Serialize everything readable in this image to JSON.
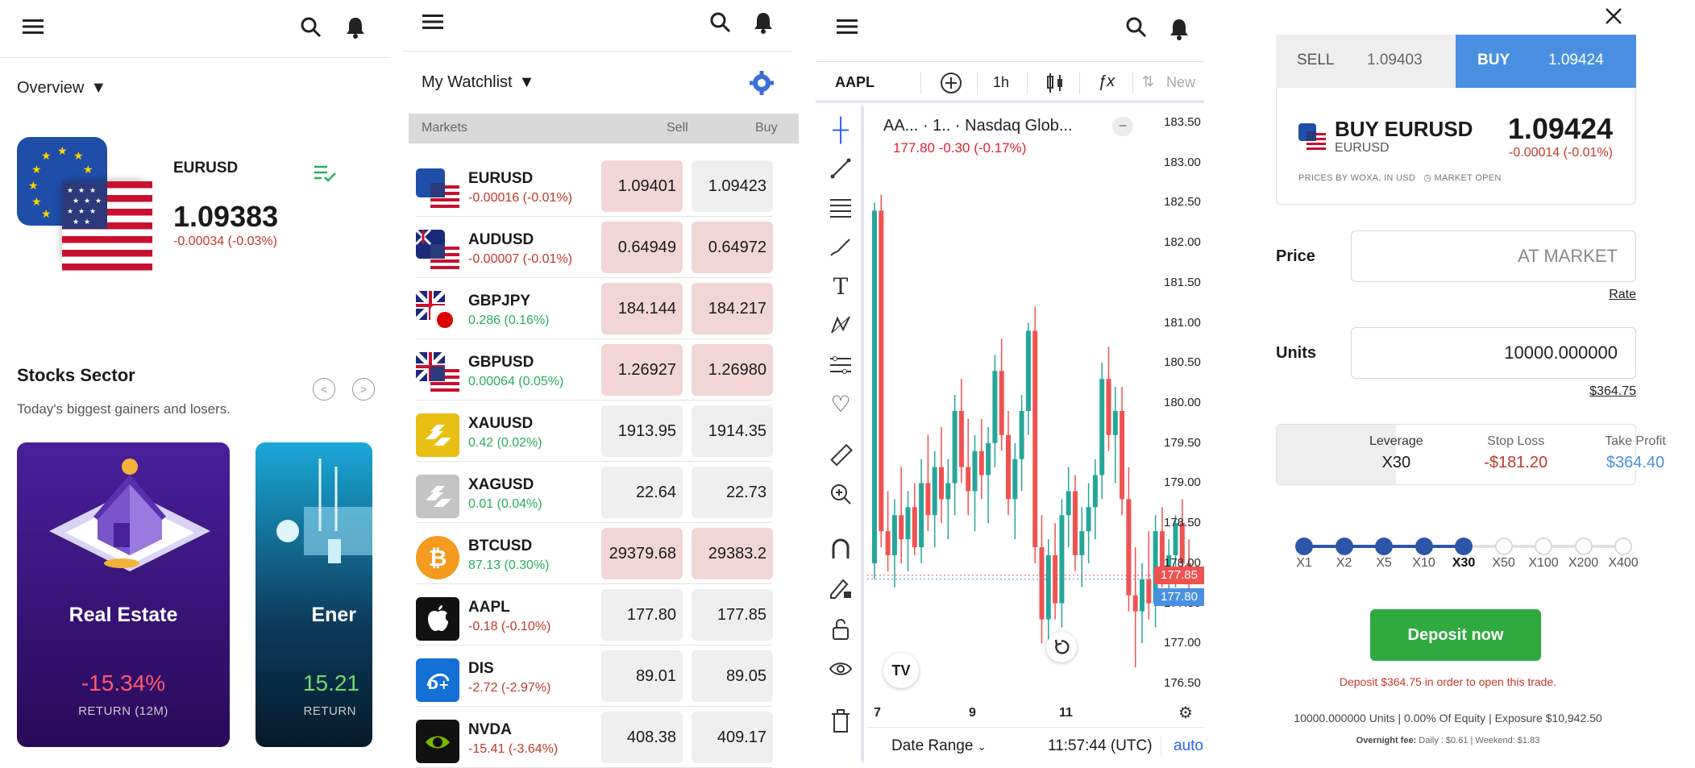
{
  "overview": {
    "title": "Overview",
    "pair": "EURUSD",
    "price": "1.09383",
    "change": "-0.00034 (-0.03%)",
    "sector_title": "Stocks Sector",
    "sector_sub": "Today's biggest gainers and losers.",
    "cards": [
      {
        "title": "Real Estate",
        "return": "-15.34%",
        "return_label": "RETURN (12M)"
      },
      {
        "title": "Ener",
        "return": "15.21",
        "return_label": "RETURN"
      }
    ]
  },
  "watchlist": {
    "title": "My Watchlist",
    "col_markets": "Markets",
    "col_sell": "Sell",
    "col_buy": "Buy",
    "rows": [
      {
        "name": "EURUSD",
        "change": "-0.00016 (-0.01%)",
        "dir": "neg",
        "sell": "1.09401",
        "buy": "1.09423",
        "sell_red": true,
        "buy_red": false,
        "icon": "eu-us-flag-icon"
      },
      {
        "name": "AUDUSD",
        "change": "-0.00007 (-0.01%)",
        "dir": "neg",
        "sell": "0.64949",
        "buy": "0.64972",
        "sell_red": true,
        "buy_red": true,
        "icon": "au-us-flag-icon"
      },
      {
        "name": "GBPJPY",
        "change": "0.286 (0.16%)",
        "dir": "pos",
        "sell": "184.144",
        "buy": "184.217",
        "sell_red": true,
        "buy_red": true,
        "icon": "gb-jp-flag-icon"
      },
      {
        "name": "GBPUSD",
        "change": "0.00064 (0.05%)",
        "dir": "pos",
        "sell": "1.26927",
        "buy": "1.26980",
        "sell_red": true,
        "buy_red": true,
        "icon": "gb-us-flag-icon"
      },
      {
        "name": "XAUUSD",
        "change": "0.42 (0.02%)",
        "dir": "pos",
        "sell": "1913.95",
        "buy": "1914.35",
        "sell_red": false,
        "buy_red": false,
        "icon": "gold-bars-icon"
      },
      {
        "name": "XAGUSD",
        "change": "0.01 (0.04%)",
        "dir": "pos",
        "sell": "22.64",
        "buy": "22.73",
        "sell_red": false,
        "buy_red": false,
        "icon": "silver-bars-icon"
      },
      {
        "name": "BTCUSD",
        "change": "87.13 (0.30%)",
        "dir": "pos",
        "sell": "29379.68",
        "buy": "29383.2",
        "sell_red": true,
        "buy_red": true,
        "icon": "bitcoin-icon"
      },
      {
        "name": "AAPL",
        "change": "-0.18 (-0.10%)",
        "dir": "neg",
        "sell": "177.80",
        "buy": "177.85",
        "sell_red": false,
        "buy_red": false,
        "icon": "apple-icon"
      },
      {
        "name": "DIS",
        "change": "-2.72 (-2.97%)",
        "dir": "neg",
        "sell": "89.01",
        "buy": "89.05",
        "sell_red": false,
        "buy_red": false,
        "icon": "disney-icon"
      },
      {
        "name": "NVDA",
        "change": "-15.41 (-3.64%)",
        "dir": "neg",
        "sell": "408.38",
        "buy": "409.17",
        "sell_red": false,
        "buy_red": false,
        "icon": "nvidia-icon"
      }
    ]
  },
  "chart_screen": {
    "symbol": "AAPL",
    "timeframe": "1h",
    "new_label": "New",
    "legend_title": "AA...  · 1.. · Nasdaq Glob...",
    "legend_values": "177.80  -0.30 (-0.17%)",
    "date_range": "Date Range",
    "clock": "11:57:44 (UTC)",
    "auto": "auto",
    "logo": "TV",
    "sell_tag": "177.85",
    "buy_tag": "177.80"
  },
  "chart_data": {
    "type": "candlestick",
    "title": "",
    "xlabel": "",
    "ylabel": "",
    "ylim": [
      176.3,
      183.7
    ],
    "x_ticks": [
      "7",
      "9",
      "11"
    ],
    "y_ticks": [
      "183.50",
      "183.00",
      "182.50",
      "182.00",
      "181.50",
      "181.00",
      "180.50",
      "180.00",
      "179.50",
      "179.00",
      "178.50",
      "178.00",
      "177.50",
      "177.00",
      "176.50"
    ],
    "last_sell": 177.85,
    "last_buy": 177.8,
    "candles": [
      [
        178.0,
        182.5,
        177.8,
        182.4
      ],
      [
        182.4,
        182.6,
        178.2,
        178.4
      ],
      [
        178.4,
        178.9,
        177.9,
        178.1
      ],
      [
        178.1,
        178.8,
        177.7,
        178.6
      ],
      [
        178.6,
        179.2,
        178.0,
        178.3
      ],
      [
        178.3,
        178.9,
        177.9,
        178.7
      ],
      [
        178.7,
        179.0,
        178.1,
        178.2
      ],
      [
        178.2,
        179.3,
        178.0,
        179.0
      ],
      [
        179.0,
        179.6,
        178.4,
        178.6
      ],
      [
        178.6,
        179.4,
        178.2,
        179.2
      ],
      [
        179.2,
        179.7,
        178.5,
        178.8
      ],
      [
        178.8,
        179.3,
        178.3,
        179.0
      ],
      [
        179.0,
        180.1,
        178.6,
        179.9
      ],
      [
        179.9,
        180.3,
        179.0,
        179.2
      ],
      [
        179.2,
        179.8,
        178.6,
        178.9
      ],
      [
        178.9,
        179.6,
        178.4,
        179.4
      ],
      [
        179.4,
        179.8,
        178.8,
        179.1
      ],
      [
        179.1,
        179.7,
        178.5,
        179.5
      ],
      [
        179.5,
        180.6,
        179.2,
        180.4
      ],
      [
        180.4,
        180.8,
        179.4,
        179.6
      ],
      [
        179.6,
        179.9,
        178.6,
        178.8
      ],
      [
        178.8,
        179.5,
        178.3,
        179.3
      ],
      [
        179.3,
        180.1,
        178.9,
        179.9
      ],
      [
        179.9,
        181.0,
        179.6,
        180.9
      ],
      [
        180.9,
        181.2,
        178.0,
        178.2
      ],
      [
        178.2,
        178.6,
        177.0,
        177.3
      ],
      [
        177.3,
        178.3,
        177.0,
        178.1
      ],
      [
        178.1,
        178.5,
        177.3,
        177.5
      ],
      [
        177.5,
        178.8,
        177.2,
        178.6
      ],
      [
        178.6,
        179.2,
        178.2,
        178.9
      ],
      [
        178.9,
        179.1,
        177.9,
        178.1
      ],
      [
        178.1,
        178.7,
        177.7,
        178.4
      ],
      [
        178.4,
        179.0,
        178.0,
        178.7
      ],
      [
        178.7,
        179.3,
        178.3,
        179.1
      ],
      [
        179.1,
        180.5,
        178.8,
        180.3
      ],
      [
        180.3,
        180.7,
        179.4,
        179.6
      ],
      [
        179.6,
        180.2,
        179.0,
        179.9
      ],
      [
        179.9,
        180.2,
        178.6,
        178.8
      ],
      [
        178.8,
        179.2,
        177.4,
        177.6
      ],
      [
        177.6,
        178.2,
        176.7,
        177.4
      ],
      [
        177.4,
        178.0,
        177.0,
        177.8
      ],
      [
        177.8,
        178.4,
        177.3,
        177.5
      ],
      [
        177.5,
        178.6,
        177.2,
        178.4
      ],
      [
        178.4,
        178.7,
        177.7,
        177.9
      ],
      [
        177.9,
        178.3,
        177.5,
        178.1
      ],
      [
        178.1,
        178.6,
        177.7,
        178.5
      ],
      [
        178.5,
        178.8,
        177.8,
        178.0
      ],
      [
        178.0,
        178.3,
        177.6,
        177.8
      ]
    ]
  },
  "order": {
    "sell_label": "SELL",
    "sell_price": "1.09403",
    "buy_label": "BUY",
    "buy_price": "1.09424",
    "title": "BUY EURUSD",
    "subtitle": "EURUSD",
    "price": "1.09424",
    "change": "-0.00014 (-0.01%)",
    "meta": "PRICES BY WOXA, IN USD",
    "market_status": "MARKET OPEN",
    "price_label": "Price",
    "price_value": "AT MARKET",
    "rate_link": "Rate",
    "units_label": "Units",
    "units_value": "10000.000000",
    "margin_link": "$364.75",
    "leverage_label": "Leverage",
    "leverage_value": "X30",
    "stop_loss_label": "Stop Loss",
    "stop_loss_value": "-$181.20",
    "take_profit_label": "Take Profit",
    "take_profit_value": "$364.40",
    "leverage_options": [
      "X1",
      "X2",
      "X5",
      "X10",
      "X30",
      "X50",
      "X100",
      "X200",
      "X400"
    ],
    "leverage_selected": 4,
    "deposit_button": "Deposit now",
    "deposit_msg": "Deposit $364.75 in order to open this trade.",
    "summary": "10000.000000 Units | 0.00% Of Equity | Exposure $10,942.50",
    "fee_label": "Overnight fee:",
    "fee_values": "Daily : $0.61 | Weekend: $1.83",
    "colors": {
      "buy": "#4a90e2",
      "deposit": "#2eaa3f",
      "negative": "#c0392b",
      "positive": "#27ae60",
      "candle_up": "#26a69a",
      "candle_down": "#ef5350"
    }
  }
}
